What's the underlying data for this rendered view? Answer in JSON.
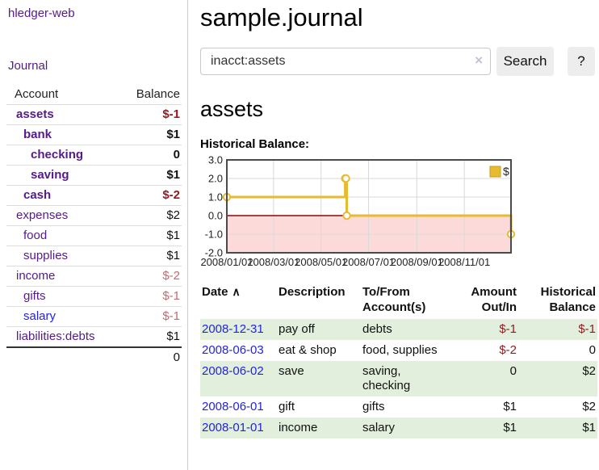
{
  "colors": {
    "purple": "#551a8b",
    "blue": "#2323e0",
    "negative": "#96181c",
    "negative-muted": "#c06b70",
    "stripe": "#e1efdc",
    "button-bg": "#ededed",
    "row-border": "#dddddd",
    "clear-icon": "#c8bcd9"
  },
  "app": {
    "name": "hledger-web"
  },
  "sidebar": {
    "nav": [
      {
        "label": "Journal"
      }
    ],
    "accounts_table": {
      "headers": {
        "account": "Account",
        "balance": "Balance"
      },
      "rows": [
        {
          "name": "assets",
          "depth": 1,
          "balance": "$-1",
          "bold": true,
          "negative": true
        },
        {
          "name": "bank",
          "depth": 2,
          "balance": "$1",
          "bold": true,
          "negative": false
        },
        {
          "name": "checking",
          "depth": 3,
          "balance": "0",
          "bold": true,
          "negative": false
        },
        {
          "name": "saving",
          "depth": 3,
          "balance": "$1",
          "bold": true,
          "negative": false
        },
        {
          "name": "cash",
          "depth": 2,
          "balance": "$-2",
          "bold": true,
          "negative": true
        },
        {
          "name": "expenses",
          "depth": 1,
          "balance": "$2",
          "bold": false,
          "negative": false
        },
        {
          "name": "food",
          "depth": 2,
          "balance": "$1",
          "bold": false,
          "negative": false
        },
        {
          "name": "supplies",
          "depth": 2,
          "balance": "$1",
          "bold": false,
          "negative": false
        },
        {
          "name": "income",
          "depth": 1,
          "balance": "$-2",
          "bold": false,
          "negative": true
        },
        {
          "name": "gifts",
          "depth": 2,
          "balance": "$-1",
          "bold": false,
          "negative": true
        },
        {
          "name": "salary",
          "depth": 2,
          "balance": "$-1",
          "bold": false,
          "negative": true,
          "link": "blue"
        },
        {
          "name": "liabilities:debts",
          "depth": 1,
          "balance": "$1",
          "bold": false,
          "negative": false
        }
      ],
      "total": "0"
    }
  },
  "header": {
    "title": "sample.journal"
  },
  "search": {
    "value": "inacct:assets",
    "clear_icon": "×",
    "button_label": "Search",
    "help_label": "?"
  },
  "account_page": {
    "heading": "assets",
    "chart_label": "Historical Balance:"
  },
  "chart_data": {
    "type": "line",
    "step": true,
    "title": "Historical Balance",
    "series": [
      {
        "name": "$",
        "points": [
          [
            "2008-01-01",
            1
          ],
          [
            "2008-06-01",
            2
          ],
          [
            "2008-06-02",
            2
          ],
          [
            "2008-06-03",
            0
          ],
          [
            "2008-12-31",
            -1
          ]
        ]
      }
    ],
    "x_domain": [
      "2008-01-01",
      "2008-12-31"
    ],
    "x_ticks": [
      "2008/01/01",
      "2008/03/01",
      "2008/05/01",
      "2008/07/01",
      "2008/09/01",
      "2008/11/01"
    ],
    "y_ticks": [
      3,
      2,
      1,
      0,
      -1,
      -2
    ],
    "ylim": [
      -2,
      3
    ],
    "grid": true,
    "legend": {
      "label": "$",
      "position": "top-right"
    },
    "colors": {
      "line": "#e7ba30",
      "legend_border": "#c49c1d",
      "marker_fill": "#ffffff",
      "negative_region": "#fcdada",
      "zero_line": "#8b0000",
      "grid": "#d9d9d9",
      "border": "#4a4a4a",
      "axis_text": "#222222"
    }
  },
  "transactions": {
    "headers": {
      "date": "Date",
      "sort_indicator": "∧",
      "description": "Description",
      "accounts": "To/From Account(s)",
      "amount": "Amount Out/In",
      "balance": "Historical Balance"
    },
    "rows": [
      {
        "date": "2008-12-31",
        "description": "pay off",
        "accounts": "debts",
        "amount": "$-1",
        "balance": "$-1",
        "amount_negative": true,
        "balance_negative": true
      },
      {
        "date": "2008-06-03",
        "description": "eat & shop",
        "accounts": "food, supplies",
        "amount": "$-2",
        "balance": "0",
        "amount_negative": true,
        "balance_negative": false
      },
      {
        "date": "2008-06-02",
        "description": "save",
        "accounts": "saving, checking",
        "amount": "0",
        "balance": "$2",
        "amount_negative": false,
        "balance_negative": false
      },
      {
        "date": "2008-06-01",
        "description": "gift",
        "accounts": "gifts",
        "amount": "$1",
        "balance": "$2",
        "amount_negative": false,
        "balance_negative": false
      },
      {
        "date": "2008-01-01",
        "description": "income",
        "accounts": "salary",
        "amount": "$1",
        "balance": "$1",
        "amount_negative": false,
        "balance_negative": false
      }
    ]
  }
}
